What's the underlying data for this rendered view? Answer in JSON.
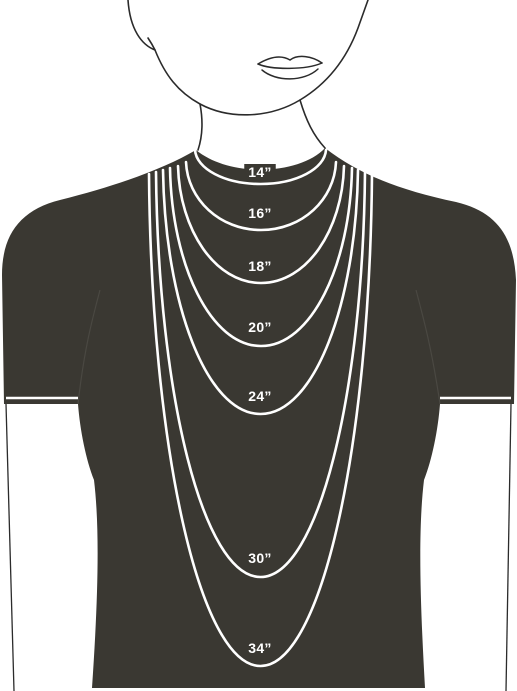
{
  "colors": {
    "shirt": "#3a3832",
    "chain": "#ffffff",
    "outline": "#2b2b2b",
    "background": "#ffffff"
  },
  "necklace_lengths": [
    {
      "id": "14",
      "label": "14”"
    },
    {
      "id": "16",
      "label": "16”"
    },
    {
      "id": "18",
      "label": "18”"
    },
    {
      "id": "20",
      "label": "20”"
    },
    {
      "id": "24",
      "label": "24”"
    },
    {
      "id": "30",
      "label": "30”"
    },
    {
      "id": "34",
      "label": "34”"
    }
  ]
}
